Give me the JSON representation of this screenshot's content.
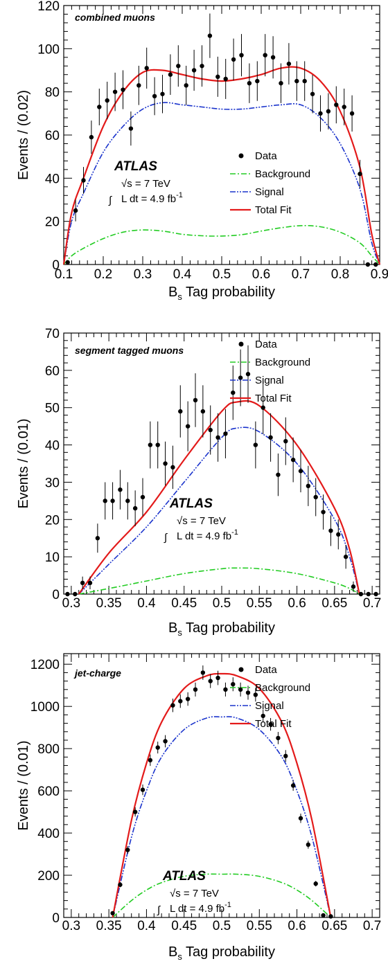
{
  "legend": {
    "data": "Data",
    "background": "Background",
    "signal": "Signal",
    "total": "Total Fit"
  },
  "atlas": {
    "label": "ATLAS",
    "energy": "√s = 7 TeV",
    "lumi_prefix": "L dt = 4.9 fb",
    "lumi_sup": "-1",
    "integral": "∫"
  },
  "colors": {
    "background": "#22cc22",
    "signal": "#1a33cc",
    "total": "#e31a1a",
    "data": "#000000"
  },
  "chart_data": [
    {
      "type": "scatter",
      "title": "combined muons",
      "xlabel_main": "B",
      "xlabel_sub": "s",
      "xlabel_rest": " Tag probability",
      "ylabel": "Events / (0.02)",
      "xlim": [
        0.1,
        0.9
      ],
      "ylim": [
        0,
        120
      ],
      "xticks": [
        0.1,
        0.2,
        0.3,
        0.4,
        0.5,
        0.6,
        0.7,
        0.8,
        0.9
      ],
      "yticks": [
        0,
        20,
        40,
        60,
        80,
        100,
        120
      ],
      "tick_labels_x": [
        "0.1",
        "0.2",
        "0.3",
        "0.4",
        "0.5",
        "0.6",
        "0.7",
        "0.8",
        "0.9"
      ],
      "tick_labels_y": [
        "0",
        "20",
        "40",
        "60",
        "80",
        "100",
        "120"
      ],
      "legend_position": "right-middle",
      "data": {
        "x": [
          0.11,
          0.13,
          0.15,
          0.17,
          0.19,
          0.21,
          0.23,
          0.25,
          0.27,
          0.29,
          0.31,
          0.33,
          0.35,
          0.37,
          0.39,
          0.41,
          0.43,
          0.45,
          0.47,
          0.49,
          0.51,
          0.53,
          0.55,
          0.57,
          0.59,
          0.61,
          0.63,
          0.65,
          0.67,
          0.69,
          0.71,
          0.73,
          0.75,
          0.77,
          0.79,
          0.81,
          0.83,
          0.85,
          0.87,
          0.89
        ],
        "y": [
          1,
          25,
          39,
          59,
          73,
          76,
          80,
          81,
          63,
          83,
          91,
          78,
          79,
          88,
          92,
          83,
          90,
          92,
          106,
          87,
          86,
          95,
          97,
          84,
          85,
          97,
          96,
          84,
          93,
          85,
          85,
          79,
          70,
          71,
          74,
          73,
          70,
          42,
          0,
          0
        ],
        "err": [
          1,
          5,
          6.2,
          7.7,
          8.5,
          8.7,
          8.9,
          9,
          7.9,
          9.1,
          9.5,
          8.8,
          8.9,
          9.4,
          9.6,
          9.1,
          9.5,
          9.6,
          10.3,
          9.3,
          9.3,
          9.7,
          9.8,
          9.2,
          9.2,
          9.8,
          9.8,
          9.2,
          9.6,
          9.2,
          9.2,
          8.9,
          8.4,
          8.4,
          8.6,
          8.5,
          8.4,
          6.5,
          0,
          0
        ]
      },
      "curves": {
        "x": [
          0.1,
          0.12,
          0.15,
          0.2,
          0.25,
          0.3,
          0.35,
          0.4,
          0.45,
          0.5,
          0.55,
          0.6,
          0.65,
          0.7,
          0.75,
          0.8,
          0.85,
          0.88,
          0.9
        ],
        "background": [
          0,
          4,
          7.5,
          12,
          15,
          16,
          15.5,
          14,
          13.3,
          13.2,
          13.8,
          15.5,
          17,
          18,
          17.5,
          15,
          10,
          4,
          0
        ],
        "signal": [
          0,
          20,
          33,
          52,
          64,
          72,
          75,
          74,
          73,
          72,
          72,
          73,
          74,
          74,
          68,
          56,
          35,
          10,
          0
        ],
        "total": [
          0,
          24,
          40,
          64,
          80,
          89,
          90,
          88,
          86,
          85,
          86,
          88,
          91,
          91,
          85,
          71,
          45,
          14,
          0
        ]
      }
    },
    {
      "type": "scatter",
      "title": "segment tagged muons",
      "xlabel_main": "B",
      "xlabel_sub": "s",
      "xlabel_rest": " Tag probability",
      "ylabel": "Events / (0.01)",
      "xlim": [
        0.29,
        0.71
      ],
      "ylim": [
        0,
        70
      ],
      "xticks": [
        0.3,
        0.35,
        0.4,
        0.45,
        0.5,
        0.55,
        0.6,
        0.65,
        0.7
      ],
      "yticks": [
        0,
        10,
        20,
        30,
        40,
        50,
        60,
        70
      ],
      "tick_labels_x": [
        "0.3",
        "0.35",
        "0.4",
        "0.45",
        "0.5",
        "0.55",
        "0.6",
        "0.65",
        "0.7"
      ],
      "tick_labels_y": [
        "0",
        "10",
        "20",
        "30",
        "40",
        "50",
        "60",
        "70"
      ],
      "legend_position": "top-right",
      "data": {
        "x": [
          0.295,
          0.305,
          0.315,
          0.325,
          0.335,
          0.345,
          0.355,
          0.365,
          0.375,
          0.385,
          0.395,
          0.405,
          0.415,
          0.425,
          0.435,
          0.445,
          0.455,
          0.465,
          0.475,
          0.485,
          0.495,
          0.505,
          0.515,
          0.525,
          0.535,
          0.545,
          0.555,
          0.565,
          0.575,
          0.585,
          0.595,
          0.605,
          0.615,
          0.625,
          0.635,
          0.645,
          0.655,
          0.665,
          0.675,
          0.685,
          0.695,
          0.705
        ],
        "y": [
          0,
          0,
          3,
          3,
          15,
          25,
          25,
          28,
          25,
          23,
          26,
          40,
          40,
          35,
          34,
          49,
          45,
          52,
          49,
          44,
          42,
          43,
          54,
          58,
          59,
          40,
          50,
          42,
          32,
          41,
          36,
          33,
          29,
          26,
          22,
          17,
          16,
          10,
          2,
          0,
          0,
          0
        ],
        "err": [
          0,
          0,
          1.7,
          1.7,
          3.9,
          5,
          5,
          5.3,
          5,
          4.8,
          5.1,
          6.3,
          6.3,
          5.9,
          5.8,
          7,
          6.7,
          7.2,
          7,
          6.6,
          6.5,
          6.6,
          7.3,
          7.6,
          7.7,
          6.3,
          7.1,
          6.5,
          5.7,
          6.4,
          6,
          5.7,
          5.4,
          5.1,
          4.7,
          4.1,
          4,
          3.2,
          1.4,
          0,
          0,
          0
        ]
      },
      "curves": {
        "x": [
          0.31,
          0.35,
          0.4,
          0.45,
          0.5,
          0.52,
          0.55,
          0.6,
          0.65,
          0.67,
          0.683
        ],
        "background": [
          0,
          1.5,
          3.5,
          5.5,
          6.8,
          7,
          6.8,
          5.5,
          3,
          1.5,
          0
        ],
        "signal": [
          0,
          8,
          18,
          30,
          42,
          44.5,
          43.5,
          35,
          20,
          10,
          0
        ],
        "total": [
          0,
          11,
          22,
          36,
          49,
          51.5,
          50.5,
          40,
          23,
          12,
          0
        ]
      }
    },
    {
      "type": "scatter",
      "title": "jet-charge",
      "xlabel_main": "B",
      "xlabel_sub": "s",
      "xlabel_rest": " Tag probability",
      "ylabel": "Events / (0.01)",
      "xlim": [
        0.29,
        0.71
      ],
      "ylim": [
        0,
        1250
      ],
      "xticks": [
        0.3,
        0.35,
        0.4,
        0.45,
        0.5,
        0.55,
        0.6,
        0.65,
        0.7
      ],
      "yticks": [
        0,
        200,
        400,
        600,
        800,
        1000,
        1200
      ],
      "tick_labels_x": [
        "0.3",
        "0.35",
        "0.4",
        "0.45",
        "0.5",
        "0.55",
        "0.6",
        "0.65",
        "0.7"
      ],
      "tick_labels_y": [
        "0",
        "200",
        "400",
        "600",
        "800",
        "1000",
        "1200"
      ],
      "legend_position": "top-right",
      "data": {
        "x": [
          0.355,
          0.365,
          0.375,
          0.385,
          0.395,
          0.405,
          0.415,
          0.425,
          0.435,
          0.445,
          0.455,
          0.465,
          0.475,
          0.485,
          0.495,
          0.505,
          0.515,
          0.525,
          0.535,
          0.545,
          0.555,
          0.565,
          0.575,
          0.585,
          0.595,
          0.605,
          0.615,
          0.625,
          0.635,
          0.645
        ],
        "y": [
          20,
          155,
          320,
          500,
          605,
          745,
          805,
          835,
          1005,
          1025,
          1035,
          1080,
          1160,
          1120,
          1135,
          1080,
          1105,
          1080,
          1065,
          1055,
          955,
          915,
          850,
          765,
          625,
          470,
          345,
          160,
          10,
          5
        ],
        "err": [
          5,
          12,
          18,
          22,
          25,
          27,
          28,
          29,
          32,
          32,
          32,
          33,
          34,
          33,
          34,
          33,
          33,
          33,
          33,
          32,
          31,
          30,
          29,
          28,
          25,
          22,
          19,
          13,
          4,
          3
        ]
      },
      "curves": {
        "x": [
          0.355,
          0.38,
          0.4,
          0.42,
          0.45,
          0.48,
          0.5,
          0.52,
          0.55,
          0.58,
          0.6,
          0.62,
          0.645
        ],
        "background": [
          0,
          80,
          130,
          165,
          195,
          205,
          205,
          205,
          195,
          165,
          130,
          80,
          0
        ],
        "signal": [
          0,
          380,
          600,
          760,
          890,
          945,
          950,
          945,
          890,
          760,
          600,
          380,
          0
        ],
        "total": [
          0,
          460,
          730,
          925,
          1085,
          1145,
          1155,
          1145,
          1085,
          925,
          730,
          460,
          0
        ]
      }
    }
  ]
}
